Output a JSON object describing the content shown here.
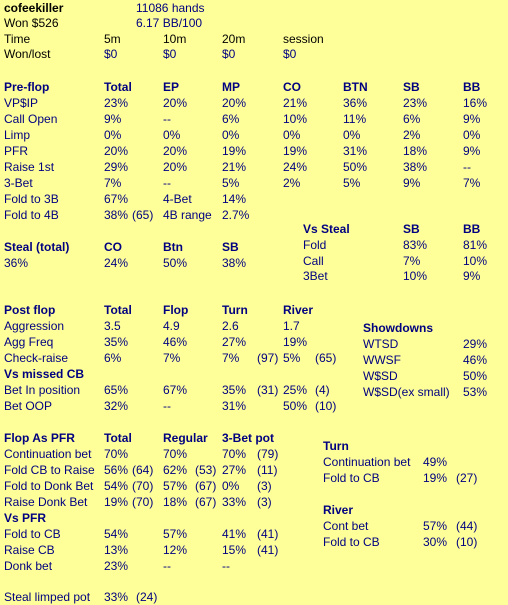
{
  "header": {
    "player": "cofeekiller",
    "hands": "11086 hands",
    "won": "Won  $526",
    "bb100": "6.17 BB/100"
  },
  "time_table": {
    "headers": [
      "Time",
      "5m",
      "10m",
      "20m",
      "session"
    ],
    "row_label": "Won/lost",
    "values": [
      "$0",
      "$0",
      "$0",
      "$0"
    ]
  },
  "preflop": {
    "headers": [
      "Pre-flop",
      "Total",
      "EP",
      "MP",
      "CO",
      "BTN",
      "SB",
      "BB"
    ],
    "rows": [
      {
        "label": "VP$IP",
        "v": [
          "23%",
          "20%",
          "20%",
          "21%",
          "36%",
          "23%",
          "16%"
        ]
      },
      {
        "label": "Call Open",
        "v": [
          "9%",
          "--",
          "6%",
          "10%",
          "11%",
          "6%",
          "9%"
        ]
      },
      {
        "label": "Limp",
        "v": [
          "0%",
          "0%",
          "0%",
          "0%",
          "0%",
          "2%",
          "0%"
        ]
      },
      {
        "label": "PFR",
        "v": [
          "20%",
          "20%",
          "19%",
          "19%",
          "31%",
          "18%",
          "9%"
        ]
      },
      {
        "label": "Raise 1st",
        "v": [
          "29%",
          "20%",
          "21%",
          "24%",
          "50%",
          "38%",
          "--"
        ]
      },
      {
        "label": "3-Bet",
        "v": [
          "7%",
          "--",
          "5%",
          "2%",
          "5%",
          "9%",
          "7%"
        ]
      }
    ],
    "fold3b": {
      "label": "Fold to 3B",
      "total": "67%",
      "label2": "4-Bet",
      "val2": "14%"
    },
    "fold4b": {
      "label": "Fold to 4B",
      "total": "38%",
      "count": "(65)",
      "label2": "4B range",
      "val2": "2.7%"
    }
  },
  "vs_steal": {
    "title": "Vs Steal",
    "h_sb": "SB",
    "h_bb": "BB",
    "rows": [
      {
        "label": "Fold",
        "sb": "83%",
        "bb": "81%"
      },
      {
        "label": "Call",
        "sb": "7%",
        "bb": "10%"
      },
      {
        "label": "3Bet",
        "sb": "10%",
        "bb": "9%"
      }
    ]
  },
  "steal": {
    "title": "Steal (total)",
    "h_co": "CO",
    "h_btn": "Btn",
    "h_sb": "SB",
    "total": "36%",
    "co": "24%",
    "btn": "50%",
    "sb": "38%"
  },
  "postflop": {
    "headers": [
      "Post flop",
      "Total",
      "Flop",
      "Turn",
      "River"
    ],
    "aggression": {
      "label": "Aggression",
      "v": [
        "3.5",
        "4.9",
        "2.6",
        "1.7"
      ]
    },
    "aggfreq": {
      "label": "Agg Freq",
      "v": [
        "35%",
        "46%",
        "27%",
        "19%"
      ]
    },
    "checkraise": {
      "label": "Check-raise",
      "total": "6%",
      "flop": "7%",
      "turn": "7%",
      "turn_n": "(97)",
      "river": "5%",
      "river_n": "(65)"
    },
    "vs_missed_cb": "Vs missed CB",
    "bet_ip": {
      "label": "Bet In position",
      "total": "65%",
      "flop": "67%",
      "turn": "35%",
      "turn_n": "(31)",
      "river": "25%",
      "river_n": "(4)"
    },
    "bet_oop": {
      "label": "Bet OOP",
      "total": "32%",
      "flop": "--",
      "turn": "31%",
      "river": "50%",
      "river_n": "(10)"
    }
  },
  "showdowns": {
    "title": "Showdowns",
    "rows": [
      {
        "label": "WTSD",
        "v": "29%"
      },
      {
        "label": "WWSF",
        "v": "46%"
      },
      {
        "label": "W$SD",
        "v": "50%"
      },
      {
        "label": "W$SD(ex small)",
        "v": "53%"
      }
    ]
  },
  "flop_pfr": {
    "headers": [
      "Flop As PFR",
      "Total",
      "Regular",
      "3-Bet pot"
    ],
    "rows": [
      {
        "label": "Continuation bet",
        "total": "70%",
        "tn": "",
        "reg": "70%",
        "rn": "",
        "tb": "70%",
        "tbn": "(79)"
      },
      {
        "label": "Fold CB to Raise",
        "total": "56%",
        "tn": "(64)",
        "reg": "62%",
        "rn": "(53)",
        "tb": "27%",
        "tbn": "(11)"
      },
      {
        "label": "Fold to Donk Bet",
        "total": "54%",
        "tn": "(70)",
        "reg": "57%",
        "rn": "(67)",
        "tb": "0%",
        "tbn": "(3)"
      },
      {
        "label": "Raise Donk Bet",
        "total": "19%",
        "tn": "(70)",
        "reg": "18%",
        "rn": "(67)",
        "tb": "33%",
        "tbn": "(3)"
      }
    ],
    "vs_pfr": "Vs PFR",
    "vs_rows": [
      {
        "label": "Fold to CB",
        "total": "54%",
        "reg": "57%",
        "tb": "41%",
        "tbn": "(41)"
      },
      {
        "label": "Raise CB",
        "total": "13%",
        "reg": "12%",
        "tb": "15%",
        "tbn": "(41)"
      },
      {
        "label": "Donk bet",
        "total": "23%",
        "reg": "--",
        "tb": "--",
        "tbn": ""
      }
    ]
  },
  "turn": {
    "title": "Turn",
    "rows": [
      {
        "label": "Continuation bet",
        "v": "49%",
        "n": ""
      },
      {
        "label": "Fold to CB",
        "v": "19%",
        "n": "(27)"
      }
    ]
  },
  "river": {
    "title": "River",
    "rows": [
      {
        "label": "Cont bet",
        "v": "57%",
        "n": "(44)"
      },
      {
        "label": "Fold to CB",
        "v": "30%",
        "n": "(10)"
      }
    ]
  },
  "steal_limped": {
    "label": "Steal limped pot",
    "v": "33%",
    "n": "(24)"
  }
}
